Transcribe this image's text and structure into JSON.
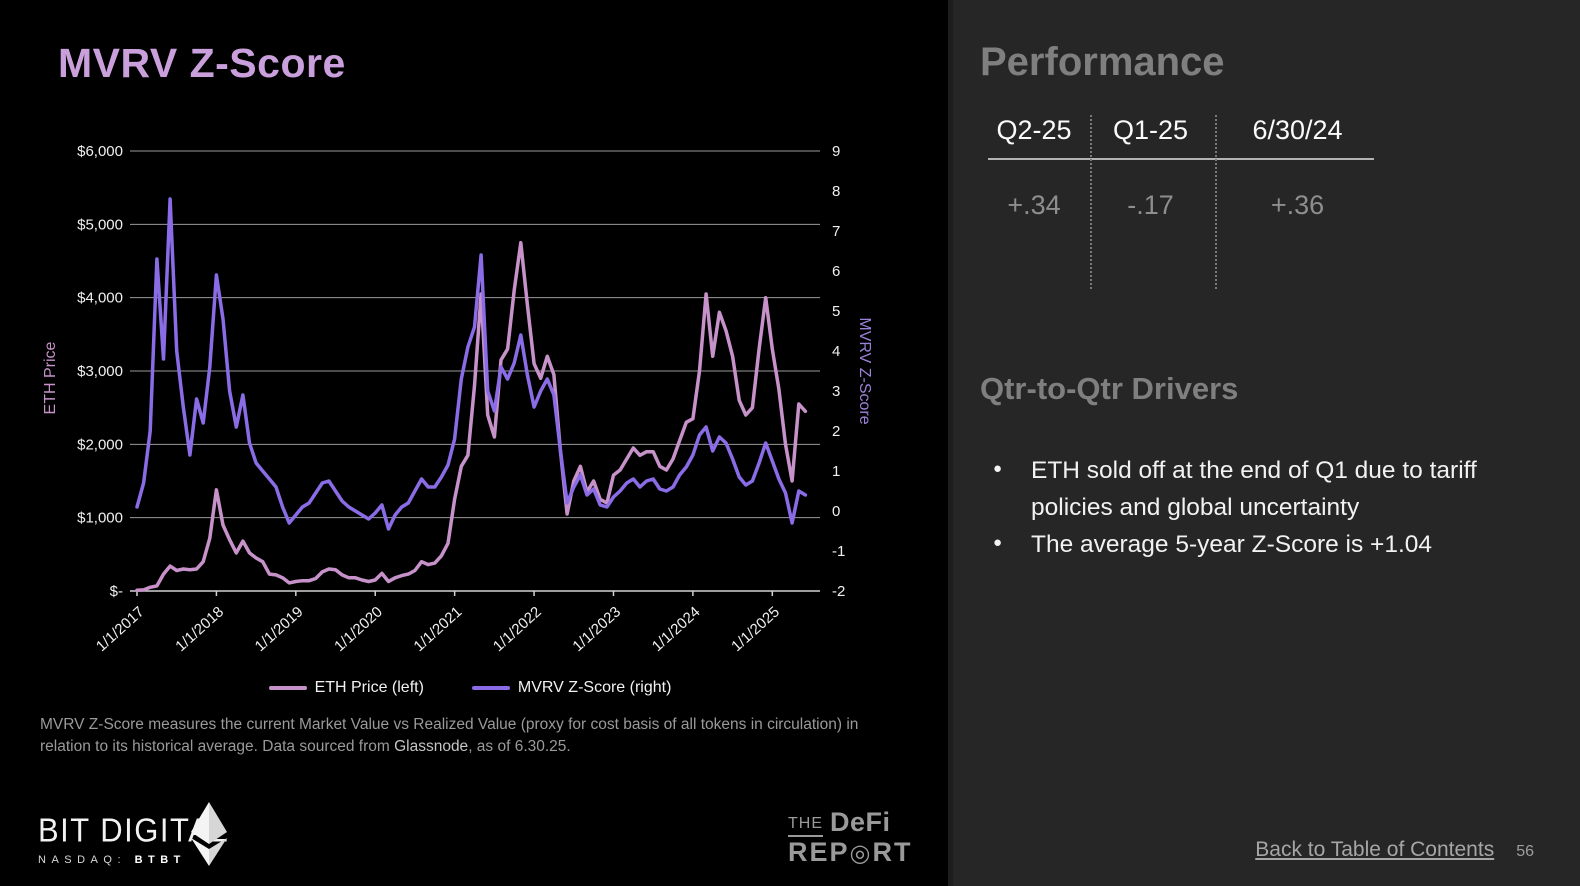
{
  "left": {
    "title": "MVRV Z-Score",
    "footnote": {
      "line1": "MVRV Z-Score  measures the current Market Value vs Realized Value (proxy for cost basis of all tokens in circulation) in",
      "line2_pre": "relation to its historical average. Data sourced from ",
      "line2_link": "Glassnode",
      "line2_post": ", as of 6.30.25."
    },
    "brand": {
      "name": "BIT DIGITAL",
      "exchange": "NASDAQ:",
      "ticker": "BTBT"
    },
    "defi_logo": {
      "the": "THE",
      "defi": "DeFi",
      "rep": "REP",
      "o_symbol": "◎",
      "rt": "RT"
    },
    "eth_icon": "ethereum-diamond"
  },
  "chart_data": {
    "type": "line",
    "title": "MVRV Z-Score",
    "gridline_color": "#9a9a9a",
    "axis_line_color": "#d2d2d2",
    "tick_color": "#f0f0f0",
    "x_tick_labels": [
      "1/1/2017",
      "1/1/2018",
      "1/1/2019",
      "1/1/2020",
      "1/1/2021",
      "1/1/2022",
      "1/1/2023",
      "1/1/2024",
      "1/1/2025"
    ],
    "x_domain_years": 8.5,
    "x_points_per_year": 12,
    "left_axis": {
      "label": "ETH Price",
      "label_color": "#c792c9",
      "min": 0,
      "max": 6000,
      "tick_values": [
        6000,
        5000,
        4000,
        3000,
        2000,
        1000,
        0
      ],
      "ticks": [
        "$6,000",
        "$5,000",
        "$4,000",
        "$3,000",
        "$2,000",
        "$1,000",
        "$-"
      ]
    },
    "right_axis": {
      "label": "MVRV Z-Score",
      "label_color": "#9b82d8",
      "min": -2,
      "max": 9,
      "ticks": [
        9,
        8,
        7,
        6,
        5,
        4,
        3,
        2,
        1,
        0,
        -1,
        -2
      ]
    },
    "series": [
      {
        "name": "ETH Price (left)",
        "axis": "left",
        "color": "#c792c9",
        "values": [
          10,
          15,
          50,
          70,
          230,
          340,
          280,
          300,
          290,
          300,
          400,
          720,
          1380,
          900,
          700,
          520,
          680,
          520,
          450,
          400,
          230,
          220,
          180,
          110,
          130,
          140,
          140,
          170,
          260,
          300,
          290,
          220,
          180,
          180,
          150,
          130,
          150,
          240,
          130,
          180,
          210,
          230,
          280,
          400,
          360,
          380,
          480,
          650,
          1250,
          1700,
          1850,
          2800,
          4050,
          2400,
          2100,
          3150,
          3300,
          4100,
          4750,
          3900,
          3100,
          2900,
          3200,
          2950,
          1900,
          1050,
          1500,
          1700,
          1350,
          1500,
          1250,
          1200,
          1580,
          1650,
          1800,
          1950,
          1850,
          1900,
          1900,
          1700,
          1650,
          1800,
          2050,
          2300,
          2350,
          3000,
          4050,
          3200,
          3800,
          3550,
          3200,
          2600,
          2400,
          2500,
          3300,
          4000,
          3300,
          2750,
          2000,
          1500,
          2550,
          2450
        ]
      },
      {
        "name": "MVRV Z-Score (right)",
        "axis": "right",
        "color": "#8a6ce6",
        "values": [
          0.1,
          0.7,
          2.0,
          6.3,
          3.8,
          7.8,
          4.0,
          2.6,
          1.4,
          2.8,
          2.2,
          3.6,
          5.9,
          4.8,
          3.0,
          2.1,
          2.9,
          1.7,
          1.2,
          1.0,
          0.8,
          0.6,
          0.1,
          -0.3,
          -0.1,
          0.1,
          0.2,
          0.45,
          0.7,
          0.75,
          0.5,
          0.25,
          0.1,
          0.0,
          -0.1,
          -0.2,
          -0.05,
          0.15,
          -0.45,
          -0.1,
          0.1,
          0.2,
          0.5,
          0.8,
          0.6,
          0.6,
          0.85,
          1.15,
          1.8,
          3.3,
          4.1,
          4.6,
          6.4,
          3.0,
          2.5,
          3.6,
          3.3,
          3.7,
          4.4,
          3.4,
          2.6,
          3.0,
          3.3,
          2.9,
          1.5,
          0.2,
          0.6,
          0.9,
          0.4,
          0.55,
          0.15,
          0.1,
          0.35,
          0.5,
          0.7,
          0.8,
          0.6,
          0.75,
          0.8,
          0.55,
          0.5,
          0.6,
          0.9,
          1.1,
          1.4,
          1.9,
          2.1,
          1.5,
          1.85,
          1.7,
          1.3,
          0.85,
          0.65,
          0.75,
          1.2,
          1.7,
          1.25,
          0.8,
          0.45,
          -0.3,
          0.5,
          0.4
        ]
      }
    ]
  },
  "right_panel": {
    "heading": "Performance",
    "performance": {
      "columns": [
        "Q2-25",
        "Q1-25",
        "6/30/24"
      ],
      "values": [
        "+.34",
        "-.17",
        "+.36"
      ]
    },
    "drivers_heading": "Qtr-to-Qtr Drivers",
    "drivers": [
      "ETH sold off at the end of Q1 due to tariff policies and global uncertainty",
      "The average 5-year Z-Score is +1.04"
    ],
    "footer": {
      "back_link": "Back to Table of Contents",
      "page_number": "56"
    }
  }
}
